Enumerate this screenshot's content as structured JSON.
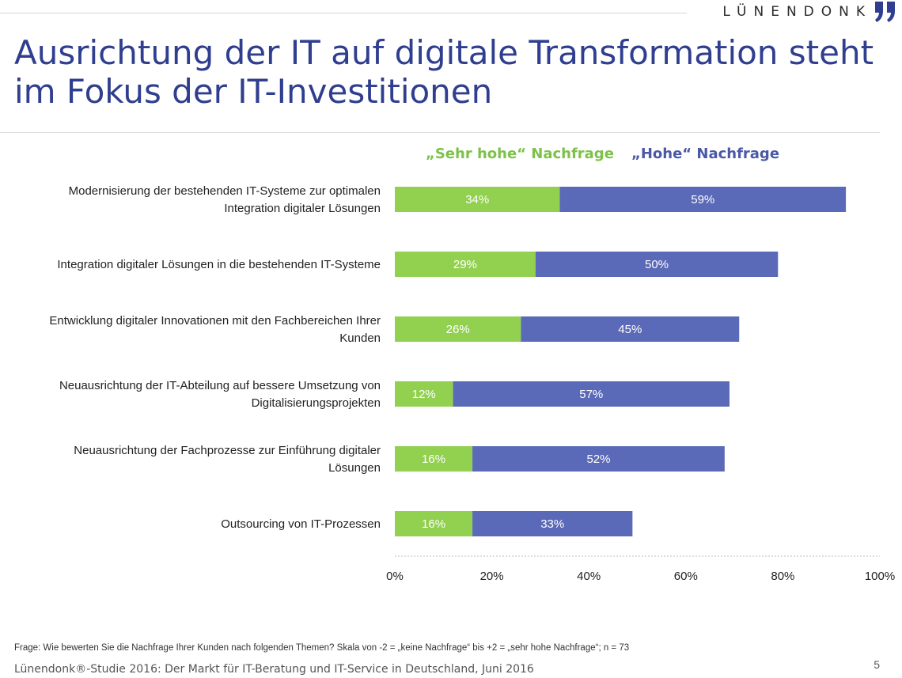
{
  "brand": {
    "name": "LÜNENDONK"
  },
  "title_lines": [
    "Ausrichtung der IT auf digitale Transformation steht",
    "im Fokus der IT-Investitionen"
  ],
  "colors": {
    "sehr_hohe": "#92d050",
    "hohe": "#5b6ab8",
    "title": "#2f3e8f",
    "legend_green": "#7cc24a",
    "legend_blue": "#4a58a6"
  },
  "chart_data": {
    "type": "bar",
    "orientation": "horizontal",
    "stacked": true,
    "categories": [
      [
        "Modernisierung der bestehenden IT-Systeme zur optimalen",
        "Integration digitaler Lösungen"
      ],
      [
        "Integration digitaler Lösungen in die bestehenden IT-Systeme"
      ],
      [
        "Entwicklung digitaler Innovationen mit den Fachbereichen Ihrer",
        "Kunden"
      ],
      [
        "Neuausrichtung der IT-Abteilung auf bessere Umsetzung von",
        "Digitalisierungsprojekten"
      ],
      [
        "Neuausrichtung der Fachprozesse zur Einführung digitaler",
        "Lösungen"
      ],
      [
        "Outsourcing von IT-Prozessen"
      ]
    ],
    "series": [
      {
        "name": "„Sehr hohe“ Nachfrage",
        "values": [
          34,
          29,
          26,
          12,
          16,
          16
        ],
        "labels": [
          "34%",
          "29%",
          "26%",
          "12%",
          "16%",
          "16%"
        ]
      },
      {
        "name": "„Hohe“ Nachfrage",
        "values": [
          59,
          50,
          45,
          57,
          52,
          33
        ],
        "labels": [
          "59%",
          "50%",
          "45%",
          "57%",
          "52%",
          "33%"
        ]
      }
    ],
    "xlim": [
      0,
      100
    ],
    "xticks": [
      "0%",
      "20%",
      "40%",
      "60%",
      "80%",
      "100%"
    ],
    "legend_position": "top",
    "grid": false
  },
  "footnote": "Frage: Wie bewerten Sie die Nachfrage Ihrer Kunden nach folgenden Themen? Skala von -2 = „keine Nachfrage“ bis +2 = „sehr hohe Nachfrage“; n = 73",
  "source": "Lünendonk®-Studie 2016: Der Markt für IT-Beratung und IT-Service in Deutschland, Juni 2016",
  "page_number": "5"
}
